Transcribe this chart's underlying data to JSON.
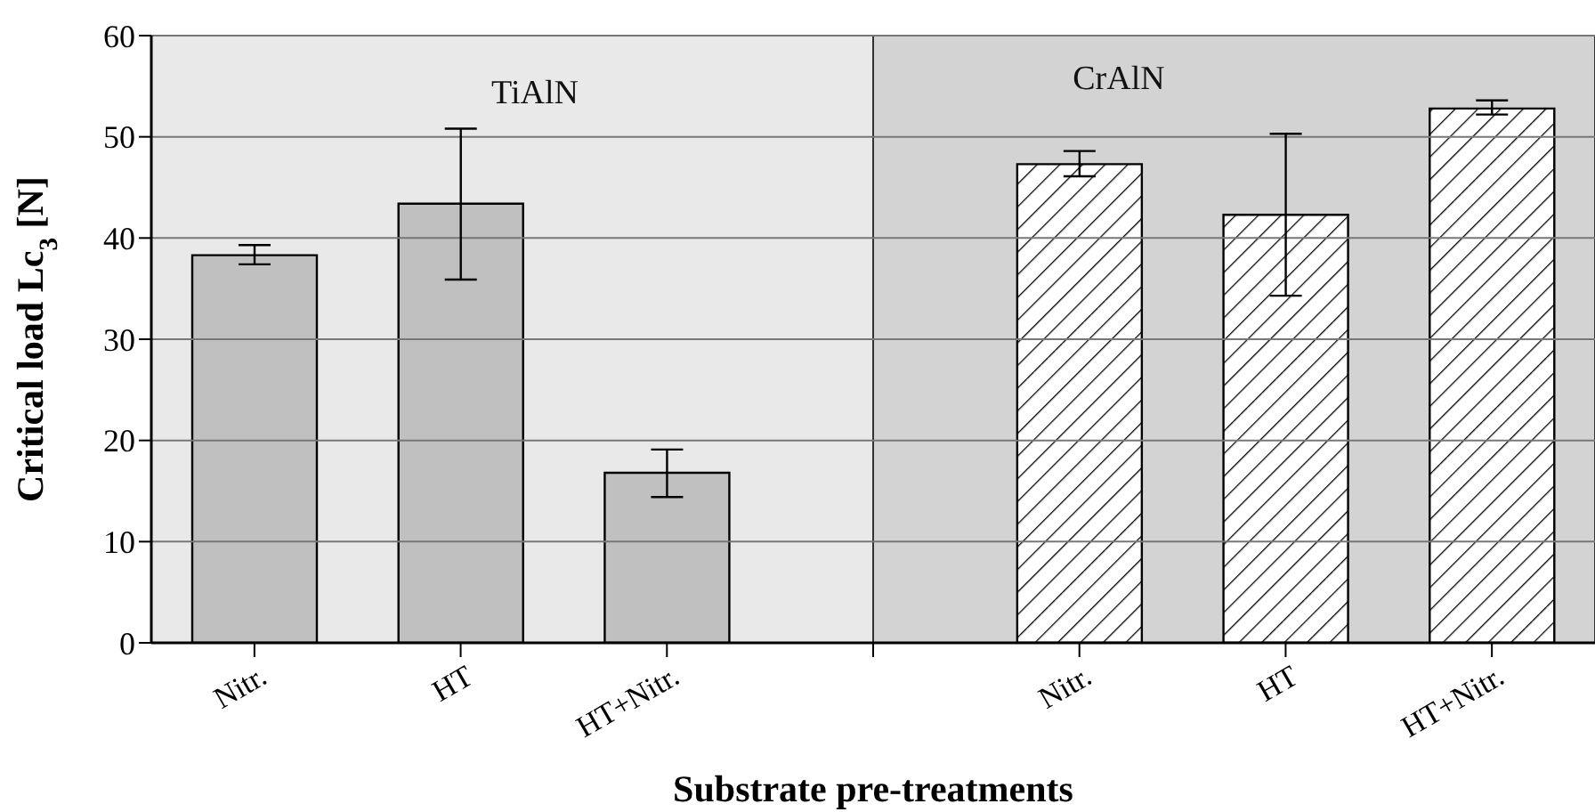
{
  "chart_data": {
    "type": "bar",
    "xlabel": "Substrate pre-treatments",
    "ylabel": "Critical load Lc$_{3}$ [N]",
    "categories": [
      "Nitr.",
      "HT",
      "HT+Nitr.",
      null,
      "Nitr.",
      "HT",
      "HT+Nitr."
    ],
    "series": [
      {
        "name": "TiAlN",
        "color": "#c0c0c0",
        "values": [
          38.3,
          43.4,
          16.8,
          null,
          null,
          null,
          null
        ],
        "errors": [
          [
            37.4,
            39.3
          ],
          [
            35.9,
            50.8
          ],
          [
            14.4,
            19.1
          ],
          null,
          null,
          null,
          null
        ]
      },
      {
        "name": "CrAlN",
        "color": "#000000",
        "values": [
          null,
          null,
          null,
          null,
          47.3,
          42.3,
          52.8
        ],
        "errors": [
          null,
          null,
          null,
          null,
          [
            46.1,
            48.6
          ],
          [
            34.3,
            50.3
          ],
          [
            52.2,
            53.6
          ]
        ]
      }
    ],
    "ylim": [
      0,
      60
    ],
    "yticks": [
      0,
      10,
      20,
      30,
      40,
      50,
      60
    ],
    "grid": "y"
  }
}
